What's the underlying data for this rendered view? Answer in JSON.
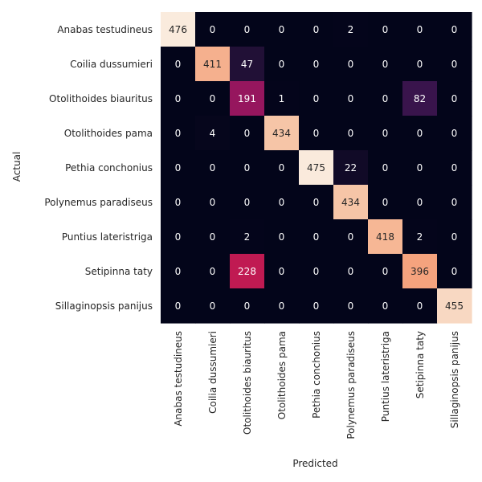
{
  "chart_data": {
    "type": "heatmap",
    "xlabel": "Predicted",
    "ylabel": "Actual",
    "x_categories": [
      "Anabas testudineus",
      "Coilia dussumieri",
      "Otolithoides biauritus",
      "Otolithoides pama",
      "Pethia conchonius",
      "Polynemus paradiseus",
      "Puntius lateristriga",
      "Setipinna taty",
      "Sillaginopsis panijus"
    ],
    "y_categories": [
      "Anabas testudineus",
      "Coilia dussumieri",
      "Otolithoides biauritus",
      "Otolithoides pama",
      "Pethia conchonius",
      "Polynemus paradiseus",
      "Puntius lateristriga",
      "Setipinna taty",
      "Sillaginopsis panijus"
    ],
    "matrix": [
      [
        476,
        0,
        0,
        0,
        0,
        2,
        0,
        0,
        0
      ],
      [
        0,
        411,
        47,
        0,
        0,
        0,
        0,
        0,
        0
      ],
      [
        0,
        0,
        191,
        1,
        0,
        0,
        0,
        82,
        0
      ],
      [
        0,
        4,
        0,
        434,
        0,
        0,
        0,
        0,
        0
      ],
      [
        0,
        0,
        0,
        0,
        475,
        22,
        0,
        0,
        0
      ],
      [
        0,
        0,
        0,
        0,
        0,
        434,
        0,
        0,
        0
      ],
      [
        0,
        0,
        2,
        0,
        0,
        0,
        418,
        2,
        0
      ],
      [
        0,
        0,
        228,
        0,
        0,
        0,
        0,
        396,
        0
      ],
      [
        0,
        0,
        0,
        0,
        0,
        0,
        0,
        0,
        455
      ]
    ],
    "value_range": [
      0,
      476
    ],
    "colormap": "rocket",
    "colorbar": false,
    "grid": false,
    "annotations": true
  }
}
